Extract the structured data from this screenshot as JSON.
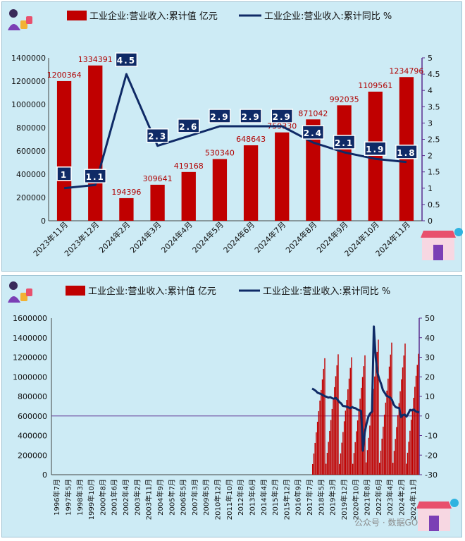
{
  "colors": {
    "bar": "#c00000",
    "line": "#0f2a66",
    "axis2": "#5b2c8f",
    "label_box": "#0f2a66",
    "bar_label": "#b00000"
  },
  "legend": {
    "bar_label": "工业企业:营业收入:累计值  亿元",
    "line_label": "工业企业:营业收入:累计同比  %"
  },
  "watermark": "公众号 · 数据GO",
  "chart_data": [
    {
      "type": "bar+line",
      "categories": [
        "2023年11月",
        "2023年12月",
        "2024年2月",
        "2024年3月",
        "2024年4月",
        "2024年5月",
        "2024年6月",
        "2024年7月",
        "2024年8月",
        "2024年9月",
        "2024年10月",
        "2024年11月"
      ],
      "series": [
        {
          "name": "工业企业:营业收入:累计值  亿元",
          "type": "bar",
          "axis": "left",
          "values": [
            1200364,
            1334391,
            194396,
            309641,
            419168,
            530340,
            648643,
            759330,
            871042,
            992035,
            1109561,
            1234796
          ]
        },
        {
          "name": "工业企业:营业收入:累计同比  %",
          "type": "line",
          "axis": "right",
          "values": [
            1,
            1.1,
            4.5,
            2.3,
            2.6,
            2.9,
            2.9,
            2.9,
            2.4,
            2.1,
            1.9,
            1.8
          ],
          "labels": [
            "1",
            "1.1",
            "4.5",
            "2.3",
            "2.6",
            "2.9",
            "2.9",
            "2.9",
            "2.4",
            "2.1",
            "1.9",
            "1.8"
          ]
        }
      ],
      "bar_labels": [
        "1200364",
        "1334391",
        "194396",
        "309641",
        "419168",
        "530340",
        "648643",
        "759330",
        "871042",
        "992035",
        "1109561",
        "1234796"
      ],
      "y_left": {
        "min": 0,
        "max": 1400000,
        "ticks": [
          "0",
          "200000",
          "400000",
          "600000",
          "800000",
          "1000000",
          "1200000",
          "1400000"
        ]
      },
      "y_right": {
        "min": 0,
        "max": 5,
        "ticks": [
          "0",
          "0.5",
          "1",
          "1.5",
          "2",
          "2.5",
          "3",
          "3.5",
          "4",
          "4.5",
          "5"
        ]
      }
    },
    {
      "type": "bar+line",
      "x_tick_labels": [
        "1996年7月",
        "1997年5月",
        "1998年3月",
        "1999年10月",
        "2000年8月",
        "2001年6月",
        "2002年4月",
        "2003年2月",
        "2003年11月",
        "2004年9月",
        "2005年7月",
        "2006年5月",
        "2007年3月",
        "2009年5月",
        "2010年12月",
        "2011年10月",
        "2012年8月",
        "2013年6月",
        "2014年4月",
        "2015年2月",
        "2015年12月",
        "2016年9月",
        "2017年7月",
        "2018年5月",
        "2019年3月",
        "2019年12月",
        "2020年10月",
        "2021年8月",
        "2022年6月",
        "2023年4月",
        "2024年2月",
        "2024年11月"
      ],
      "bar_start_year": 2017,
      "bar_years": [
        2017,
        2018,
        2019,
        2020,
        2021,
        2022,
        2023,
        2024
      ],
      "bar_year_end_values": [
        1190000,
        1230000,
        1200000,
        1220000,
        1380000,
        1350000,
        1340000,
        1234796
      ],
      "line_values": [
        14,
        13.5,
        12.8,
        11.9,
        11.5,
        11.2,
        10.6,
        10.1,
        9.8,
        9.4,
        9.6,
        9.1,
        8.8,
        9.2,
        8.3,
        7.1,
        6.4,
        5.1,
        5.0,
        4.8,
        4.4,
        3.9,
        4.6,
        4.1,
        3.9,
        3.3,
        2.9,
        2.6,
        -17.7,
        -8.4,
        -3.8,
        -0.3,
        1.3,
        2.2,
        45.7,
        30.1,
        22.1,
        18.9,
        16.4,
        13.2,
        11.8,
        10.3,
        9.9,
        9.4,
        8.2,
        5.8,
        4.6,
        4.2,
        4.0,
        -0.6,
        0.5,
        0.7,
        -0.3,
        1.2,
        3.1,
        2.8,
        3.3,
        2.4,
        2.1,
        1.8
      ],
      "y_left": {
        "min": 0,
        "max": 1600000,
        "ticks": [
          "0",
          "200000",
          "400000",
          "600000",
          "800000",
          "1000000",
          "1200000",
          "1400000",
          "1600000"
        ]
      },
      "y_right": {
        "min": -30,
        "max": 50,
        "ticks": [
          "-30",
          "-20",
          "-10",
          "0",
          "10",
          "20",
          "30",
          "40",
          "50"
        ]
      }
    }
  ]
}
